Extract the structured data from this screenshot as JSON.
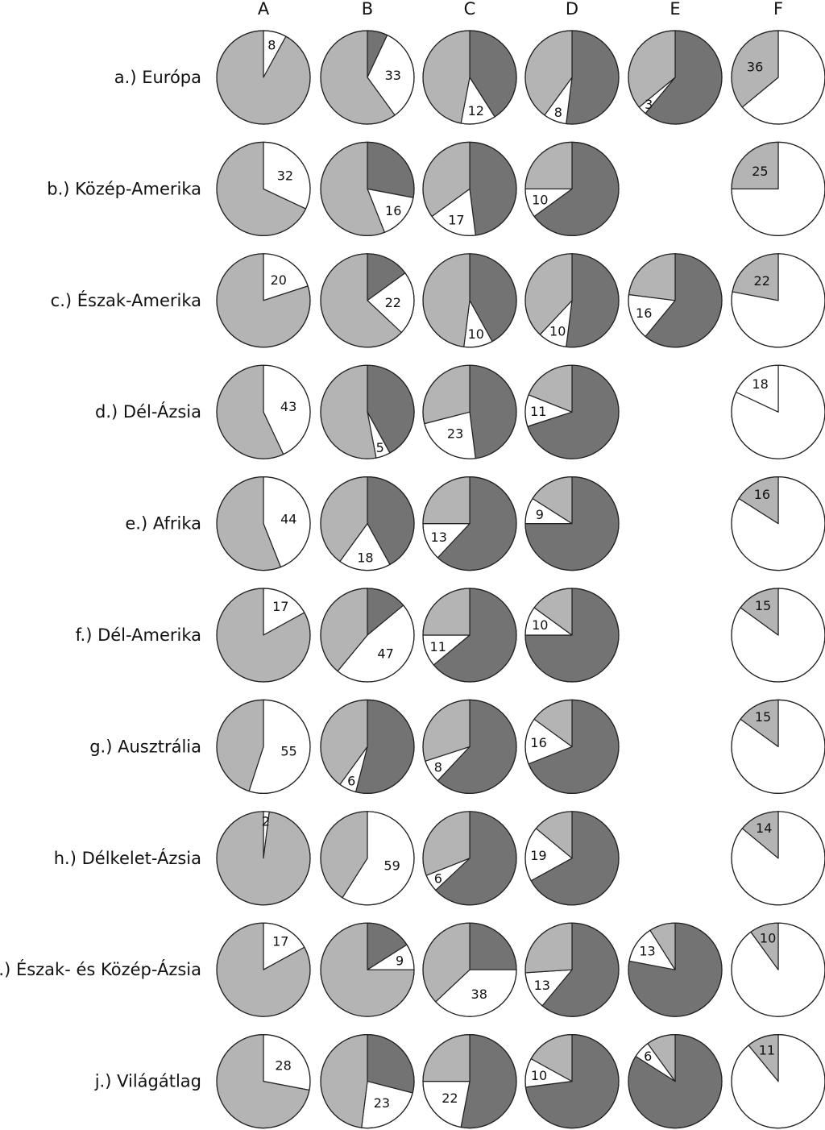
{
  "chart_data": {
    "type": "pie",
    "title": "",
    "legend": "none",
    "colors": {
      "light": "#b4b4b4",
      "dark": "#737373",
      "white": "#ffffff"
    },
    "columns": [
      "A",
      "B",
      "C",
      "D",
      "E",
      "F"
    ],
    "rows": [
      {
        "label": "a.) Európa",
        "pies": [
          {
            "slices": [
              {
                "color": "white",
                "value": 8,
                "label": "8"
              },
              {
                "color": "light",
                "value": 92
              }
            ]
          },
          {
            "slices": [
              {
                "color": "dark",
                "value": 7
              },
              {
                "color": "white",
                "value": 33,
                "label": "33"
              },
              {
                "color": "light",
                "value": 60
              }
            ]
          },
          {
            "slices": [
              {
                "color": "dark",
                "value": 41
              },
              {
                "color": "white",
                "value": 12,
                "label": "12"
              },
              {
                "color": "light",
                "value": 47
              }
            ]
          },
          {
            "slices": [
              {
                "color": "dark",
                "value": 52
              },
              {
                "color": "white",
                "value": 8,
                "label": "8"
              },
              {
                "color": "light",
                "value": 40
              }
            ]
          },
          {
            "slices": [
              {
                "color": "dark",
                "value": 61
              },
              {
                "color": "white",
                "value": 3,
                "label": "3"
              },
              {
                "color": "light",
                "value": 36
              }
            ]
          },
          {
            "slices": [
              {
                "color": "white",
                "value": 64
              },
              {
                "color": "light",
                "value": 36,
                "label": "36"
              }
            ]
          }
        ]
      },
      {
        "label": "b.) Közép-Amerika",
        "pies": [
          {
            "slices": [
              {
                "color": "white",
                "value": 32,
                "label": "32"
              },
              {
                "color": "light",
                "value": 68
              }
            ]
          },
          {
            "slices": [
              {
                "color": "dark",
                "value": 28
              },
              {
                "color": "white",
                "value": 16,
                "label": "16"
              },
              {
                "color": "light",
                "value": 56
              }
            ]
          },
          {
            "slices": [
              {
                "color": "dark",
                "value": 48
              },
              {
                "color": "white",
                "value": 17,
                "label": "17"
              },
              {
                "color": "light",
                "value": 35
              }
            ]
          },
          {
            "slices": [
              {
                "color": "dark",
                "value": 65
              },
              {
                "color": "white",
                "value": 10,
                "label": "10"
              },
              {
                "color": "light",
                "value": 25
              }
            ]
          },
          null,
          {
            "slices": [
              {
                "color": "white",
                "value": 75
              },
              {
                "color": "light",
                "value": 25,
                "label": "25"
              }
            ]
          }
        ]
      },
      {
        "label": "c.) Észak-Amerika",
        "pies": [
          {
            "slices": [
              {
                "color": "white",
                "value": 20,
                "label": "20"
              },
              {
                "color": "light",
                "value": 80
              }
            ]
          },
          {
            "slices": [
              {
                "color": "dark",
                "value": 15
              },
              {
                "color": "white",
                "value": 22,
                "label": "22"
              },
              {
                "color": "light",
                "value": 63
              }
            ]
          },
          {
            "slices": [
              {
                "color": "dark",
                "value": 42
              },
              {
                "color": "white",
                "value": 10,
                "label": "10"
              },
              {
                "color": "light",
                "value": 48
              }
            ]
          },
          {
            "slices": [
              {
                "color": "dark",
                "value": 52
              },
              {
                "color": "white",
                "value": 10,
                "label": "10"
              },
              {
                "color": "light",
                "value": 38
              }
            ]
          },
          {
            "slices": [
              {
                "color": "dark",
                "value": 61
              },
              {
                "color": "white",
                "value": 16,
                "label": "16"
              },
              {
                "color": "light",
                "value": 23
              }
            ]
          },
          {
            "slices": [
              {
                "color": "white",
                "value": 78
              },
              {
                "color": "light",
                "value": 22,
                "label": "22"
              }
            ]
          }
        ]
      },
      {
        "label": "d.) Dél-Ázsia",
        "pies": [
          {
            "slices": [
              {
                "color": "white",
                "value": 43,
                "label": "43"
              },
              {
                "color": "light",
                "value": 57
              }
            ]
          },
          {
            "slices": [
              {
                "color": "dark",
                "value": 42
              },
              {
                "color": "white",
                "value": 5,
                "label": "5"
              },
              {
                "color": "light",
                "value": 53
              }
            ]
          },
          {
            "slices": [
              {
                "color": "dark",
                "value": 48
              },
              {
                "color": "white",
                "value": 23,
                "label": "23"
              },
              {
                "color": "light",
                "value": 29
              }
            ]
          },
          {
            "slices": [
              {
                "color": "dark",
                "value": 70
              },
              {
                "color": "white",
                "value": 11,
                "label": "11"
              },
              {
                "color": "light",
                "value": 19
              }
            ]
          },
          null,
          {
            "slices": [
              {
                "color": "white",
                "value": 82
              },
              {
                "color": "white",
                "value": 18,
                "label": "18"
              }
            ]
          }
        ]
      },
      {
        "label": "e.) Afrika",
        "pies": [
          {
            "slices": [
              {
                "color": "white",
                "value": 44,
                "label": "44"
              },
              {
                "color": "light",
                "value": 56
              }
            ]
          },
          {
            "slices": [
              {
                "color": "dark",
                "value": 42
              },
              {
                "color": "white",
                "value": 18,
                "label": "18"
              },
              {
                "color": "light",
                "value": 40
              }
            ]
          },
          {
            "slices": [
              {
                "color": "dark",
                "value": 62
              },
              {
                "color": "white",
                "value": 13,
                "label": "13"
              },
              {
                "color": "light",
                "value": 25
              }
            ]
          },
          {
            "slices": [
              {
                "color": "dark",
                "value": 75
              },
              {
                "color": "white",
                "value": 9,
                "label": "9"
              },
              {
                "color": "light",
                "value": 16
              }
            ]
          },
          null,
          {
            "slices": [
              {
                "color": "white",
                "value": 84
              },
              {
                "color": "light",
                "value": 16,
                "label": "16"
              }
            ]
          }
        ]
      },
      {
        "label": "f.) Dél-Amerika",
        "pies": [
          {
            "slices": [
              {
                "color": "white",
                "value": 17,
                "label": "17"
              },
              {
                "color": "light",
                "value": 83
              }
            ]
          },
          {
            "slices": [
              {
                "color": "dark",
                "value": 14
              },
              {
                "color": "white",
                "value": 47,
                "label": "47"
              },
              {
                "color": "light",
                "value": 39
              }
            ]
          },
          {
            "slices": [
              {
                "color": "dark",
                "value": 64
              },
              {
                "color": "white",
                "value": 11,
                "label": "11"
              },
              {
                "color": "light",
                "value": 25
              }
            ]
          },
          {
            "slices": [
              {
                "color": "dark",
                "value": 75
              },
              {
                "color": "white",
                "value": 10,
                "label": "10"
              },
              {
                "color": "light",
                "value": 15
              }
            ]
          },
          null,
          {
            "slices": [
              {
                "color": "white",
                "value": 85
              },
              {
                "color": "light",
                "value": 15,
                "label": "15"
              }
            ]
          }
        ]
      },
      {
        "label": "g.) Ausztrália",
        "pies": [
          {
            "slices": [
              {
                "color": "white",
                "value": 55,
                "label": "55"
              },
              {
                "color": "light",
                "value": 45
              }
            ]
          },
          {
            "slices": [
              {
                "color": "dark",
                "value": 54
              },
              {
                "color": "white",
                "value": 6,
                "label": "6"
              },
              {
                "color": "light",
                "value": 40
              }
            ]
          },
          {
            "slices": [
              {
                "color": "dark",
                "value": 62
              },
              {
                "color": "white",
                "value": 8,
                "label": "8"
              },
              {
                "color": "light",
                "value": 30
              }
            ]
          },
          {
            "slices": [
              {
                "color": "dark",
                "value": 69
              },
              {
                "color": "white",
                "value": 16,
                "label": "16"
              },
              {
                "color": "light",
                "value": 15
              }
            ]
          },
          null,
          {
            "slices": [
              {
                "color": "white",
                "value": 85
              },
              {
                "color": "light",
                "value": 15,
                "label": "15"
              }
            ]
          }
        ]
      },
      {
        "label": "h.) Délkelet-Ázsia",
        "pies": [
          {
            "slices": [
              {
                "color": "white",
                "value": 2,
                "label": "2"
              },
              {
                "color": "light",
                "value": 98
              }
            ]
          },
          {
            "slices": [
              {
                "color": "white",
                "value": 59,
                "label": "59"
              },
              {
                "color": "light",
                "value": 41
              }
            ]
          },
          {
            "slices": [
              {
                "color": "dark",
                "value": 63
              },
              {
                "color": "white",
                "value": 6,
                "label": "6"
              },
              {
                "color": "light",
                "value": 31
              }
            ]
          },
          {
            "slices": [
              {
                "color": "dark",
                "value": 67
              },
              {
                "color": "white",
                "value": 19,
                "label": "19"
              },
              {
                "color": "light",
                "value": 14
              }
            ]
          },
          null,
          {
            "slices": [
              {
                "color": "white",
                "value": 86
              },
              {
                "color": "light",
                "value": 14,
                "label": "14"
              }
            ]
          }
        ]
      },
      {
        "label": "i.) Észak- és Közép-Ázsia",
        "pies": [
          {
            "slices": [
              {
                "color": "white",
                "value": 17,
                "label": "17"
              },
              {
                "color": "light",
                "value": 83
              }
            ]
          },
          {
            "slices": [
              {
                "color": "dark",
                "value": 16
              },
              {
                "color": "white",
                "value": 9,
                "label": "9"
              },
              {
                "color": "light",
                "value": 75
              }
            ]
          },
          {
            "slices": [
              {
                "color": "dark",
                "value": 25
              },
              {
                "color": "white",
                "value": 38,
                "label": "38"
              },
              {
                "color": "light",
                "value": 37
              }
            ]
          },
          {
            "slices": [
              {
                "color": "dark",
                "value": 61
              },
              {
                "color": "white",
                "value": 13,
                "label": "13"
              },
              {
                "color": "light",
                "value": 26
              }
            ]
          },
          {
            "slices": [
              {
                "color": "dark",
                "value": 78
              },
              {
                "color": "white",
                "value": 13,
                "label": "13"
              },
              {
                "color": "light",
                "value": 9
              }
            ]
          },
          {
            "slices": [
              {
                "color": "white",
                "value": 90
              },
              {
                "color": "light",
                "value": 10,
                "label": "10"
              }
            ]
          }
        ]
      },
      {
        "label": "j.) Világátlag",
        "pies": [
          {
            "slices": [
              {
                "color": "white",
                "value": 28,
                "label": "28"
              },
              {
                "color": "light",
                "value": 72
              }
            ]
          },
          {
            "slices": [
              {
                "color": "dark",
                "value": 29
              },
              {
                "color": "white",
                "value": 23,
                "label": "23"
              },
              {
                "color": "light",
                "value": 48
              }
            ]
          },
          {
            "slices": [
              {
                "color": "dark",
                "value": 53
              },
              {
                "color": "white",
                "value": 22,
                "label": "22"
              },
              {
                "color": "light",
                "value": 25
              }
            ]
          },
          {
            "slices": [
              {
                "color": "dark",
                "value": 73
              },
              {
                "color": "white",
                "value": 10,
                "label": "10"
              },
              {
                "color": "light",
                "value": 17
              }
            ]
          },
          {
            "slices": [
              {
                "color": "dark",
                "value": 84
              },
              {
                "color": "white",
                "value": 6,
                "label": "6"
              },
              {
                "color": "light",
                "value": 10
              }
            ]
          },
          {
            "slices": [
              {
                "color": "white",
                "value": 89
              },
              {
                "color": "light",
                "value": 11,
                "label": "11"
              }
            ]
          }
        ]
      }
    ]
  }
}
